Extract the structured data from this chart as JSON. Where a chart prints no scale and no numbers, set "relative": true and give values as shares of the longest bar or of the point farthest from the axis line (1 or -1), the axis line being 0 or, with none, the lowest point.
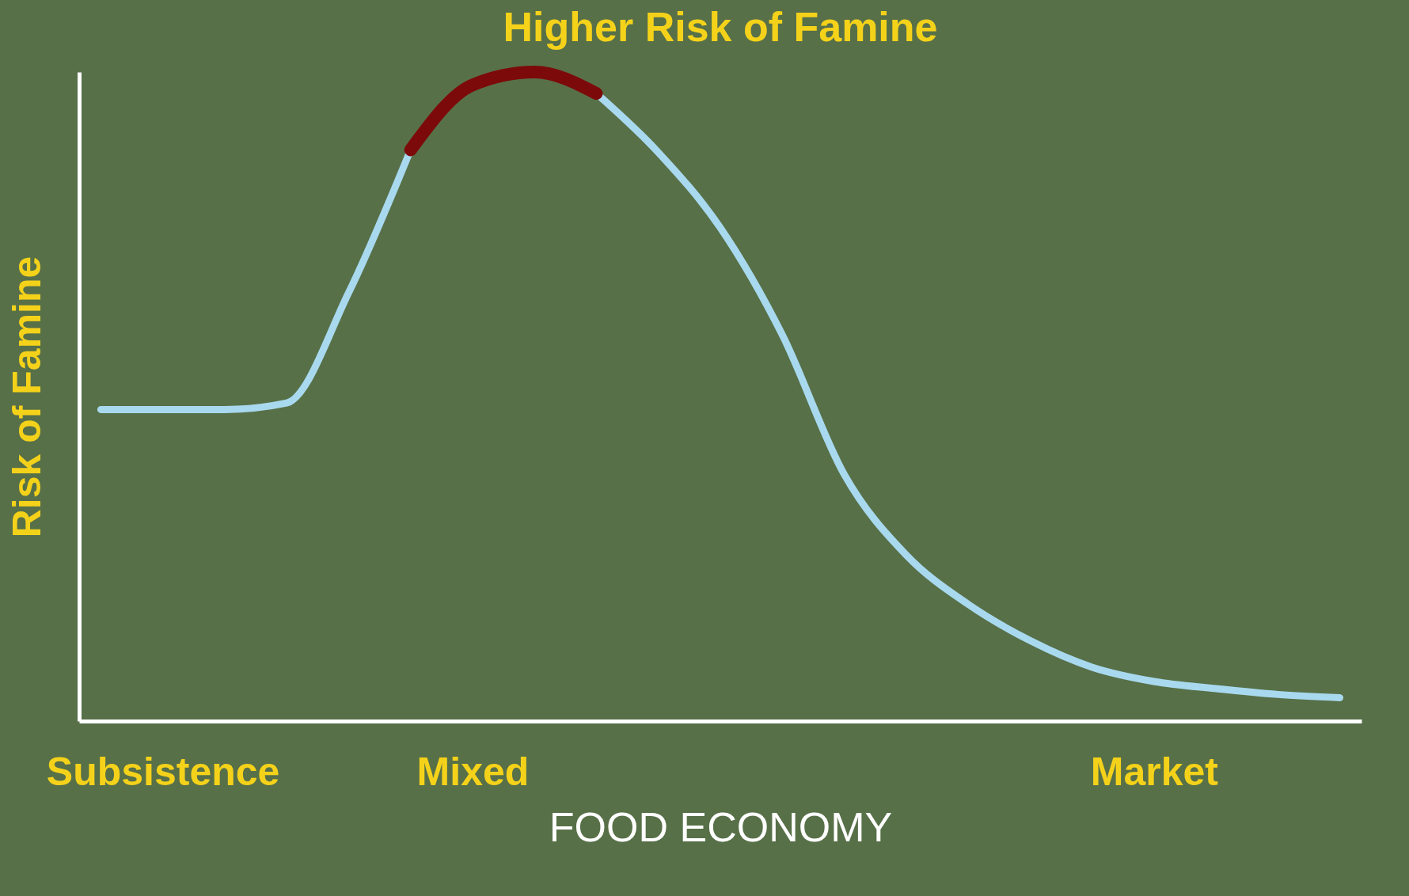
{
  "chart_data": {
    "type": "line",
    "title": "Higher Risk of Famine",
    "xlabel": "FOOD ECONOMY",
    "ylabel": "Risk of Famine",
    "relative": true,
    "tick_labels": "x",
    "grid": false,
    "line_style": "solid",
    "marker": "none",
    "categories": [
      null,
      "Subsistence",
      null,
      null,
      null,
      null,
      "Mixed",
      null,
      null,
      null,
      null,
      null,
      null,
      null,
      null,
      null,
      null,
      "Market",
      null,
      null,
      null
    ],
    "series": [
      {
        "color": "#a9d9ee",
        "values": [
          0.48,
          0.48,
          0.48,
          0.49,
          0.66,
          0.88,
          null,
          null,
          0.967,
          0.876,
          0.76,
          0.595,
          0.38,
          0.256,
          0.18,
          0.124,
          0.083,
          0.061,
          0.05,
          0.041,
          0.036
        ]
      },
      {
        "color": "#7d0a0a",
        "values": [
          null,
          null,
          null,
          null,
          null,
          0.88,
          0.98,
          1.0,
          0.967,
          null,
          null,
          null,
          null,
          null,
          null,
          null,
          null,
          null,
          null,
          null,
          null
        ]
      }
    ]
  }
}
